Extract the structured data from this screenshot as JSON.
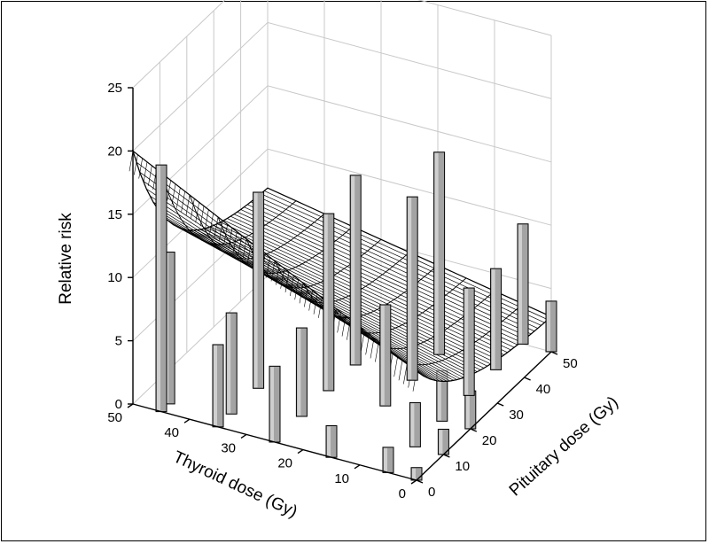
{
  "chart_data": {
    "type": "3d-surface-with-bars",
    "title": "",
    "zlabel": "Relative risk",
    "xlabel": "Thyroid dose (Gy)",
    "ylabel": "Pituitary dose (Gy)",
    "zlim": [
      0,
      25
    ],
    "xlim": [
      0,
      50
    ],
    "ylim": [
      0,
      50
    ],
    "z_ticks": [
      "0",
      "5",
      "10",
      "15",
      "20",
      "25"
    ],
    "x_ticks": [
      "0",
      "10",
      "20",
      "30",
      "40",
      "50"
    ],
    "y_ticks": [
      "0",
      "10",
      "20",
      "30",
      "40",
      "50"
    ],
    "grid": true,
    "surface_model": "relative risk surface decreasing with pituitary dose and increasing with thyroid dose",
    "bars": [
      {
        "thyroid": 45,
        "pituitary": 0,
        "rr": 19.5
      },
      {
        "thyroid": 45,
        "pituitary": 3,
        "rr": 12.0
      },
      {
        "thyroid": 35,
        "pituitary": 0,
        "rr": 6.5
      },
      {
        "thyroid": 35,
        "pituitary": 5,
        "rr": 8.0
      },
      {
        "thyroid": 35,
        "pituitary": 15,
        "rr": 15.5
      },
      {
        "thyroid": 25,
        "pituitary": 0,
        "rr": 6.0
      },
      {
        "thyroid": 25,
        "pituitary": 10,
        "rr": 7.0
      },
      {
        "thyroid": 25,
        "pituitary": 20,
        "rr": 14.0
      },
      {
        "thyroid": 25,
        "pituitary": 30,
        "rr": 15.0
      },
      {
        "thyroid": 15,
        "pituitary": 0,
        "rr": 2.5
      },
      {
        "thyroid": 15,
        "pituitary": 20,
        "rr": 8.0
      },
      {
        "thyroid": 15,
        "pituitary": 30,
        "rr": 14.5
      },
      {
        "thyroid": 15,
        "pituitary": 40,
        "rr": 16.0
      },
      {
        "thyroid": 5,
        "pituitary": 0,
        "rr": 2.0
      },
      {
        "thyroid": 5,
        "pituitary": 10,
        "rr": 3.5
      },
      {
        "thyroid": 5,
        "pituitary": 20,
        "rr": 4.0
      },
      {
        "thyroid": 5,
        "pituitary": 30,
        "rr": 8.5
      },
      {
        "thyroid": 5,
        "pituitary": 40,
        "rr": 8.0
      },
      {
        "thyroid": 5,
        "pituitary": 50,
        "rr": 9.5
      },
      {
        "thyroid": 0,
        "pituitary": 0,
        "rr": 1.0
      },
      {
        "thyroid": 0,
        "pituitary": 10,
        "rr": 2.0
      },
      {
        "thyroid": 0,
        "pituitary": 20,
        "rr": 3.0
      },
      {
        "thyroid": 0,
        "pituitary": 50,
        "rr": 4.0
      }
    ]
  }
}
